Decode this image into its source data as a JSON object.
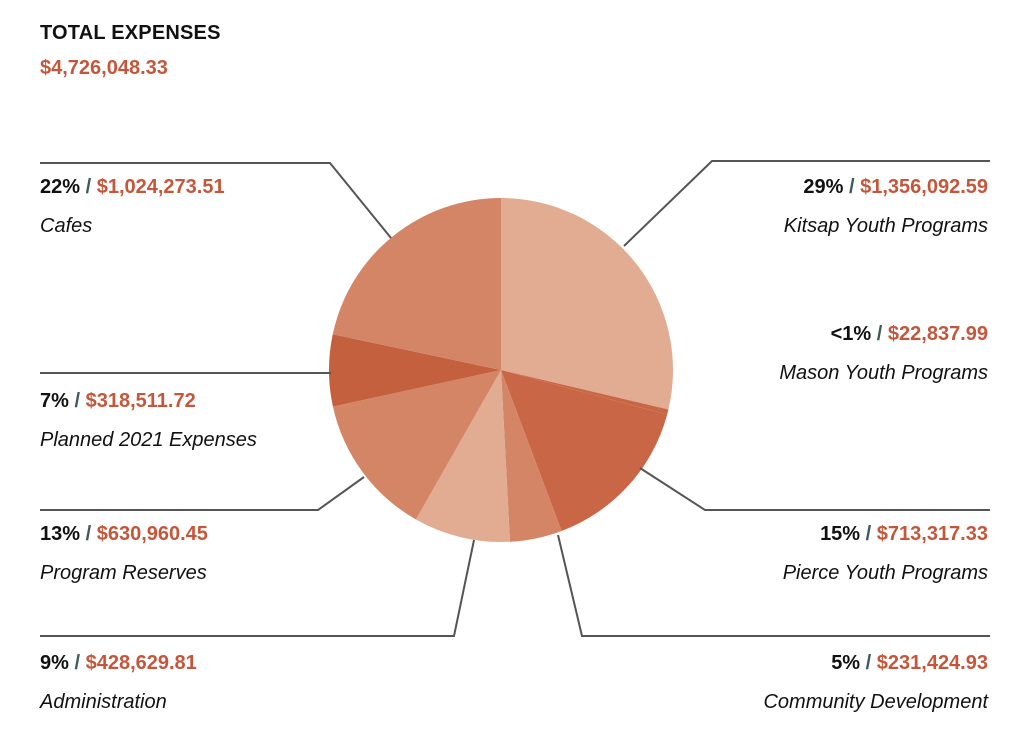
{
  "header": {
    "title": "TOTAL EXPENSES",
    "total": "$4,726,048.33"
  },
  "chart_data": {
    "type": "pie",
    "title": "TOTAL EXPENSES",
    "total": "$4,726,048.33",
    "slices": [
      {
        "name": "Kitsap Youth Programs",
        "percent_label": "29%",
        "amount_label": "$1,356,092.59",
        "value": 1356092.59,
        "color": "#e1ac92"
      },
      {
        "name": "Mason Youth Programs",
        "percent_label": "<1%",
        "amount_label": "$22,837.99",
        "value": 22837.99,
        "color": "#c96645"
      },
      {
        "name": "Pierce Youth Programs",
        "percent_label": "15%",
        "amount_label": "$713,317.33",
        "value": 713317.33,
        "color": "#c96645"
      },
      {
        "name": "Community Development",
        "percent_label": "5%",
        "amount_label": "$231,424.93",
        "value": 231424.93,
        "color": "#d48566"
      },
      {
        "name": "Administration",
        "percent_label": "9%",
        "amount_label": "$428,629.81",
        "value": 428629.81,
        "color": "#e1ac92"
      },
      {
        "name": "Program Reserves",
        "percent_label": "13%",
        "amount_label": "$630,960.45",
        "value": 630960.45,
        "color": "#d48566"
      },
      {
        "name": "Planned 2021 Expenses",
        "percent_label": "7%",
        "amount_label": "$318,511.72",
        "value": 318511.72,
        "color": "#c4603e"
      },
      {
        "name": "Cafes",
        "percent_label": "22%",
        "amount_label": "$1,024,273.51",
        "value": 1024273.51,
        "color": "#d48566"
      }
    ],
    "leader_color": "#555555"
  }
}
